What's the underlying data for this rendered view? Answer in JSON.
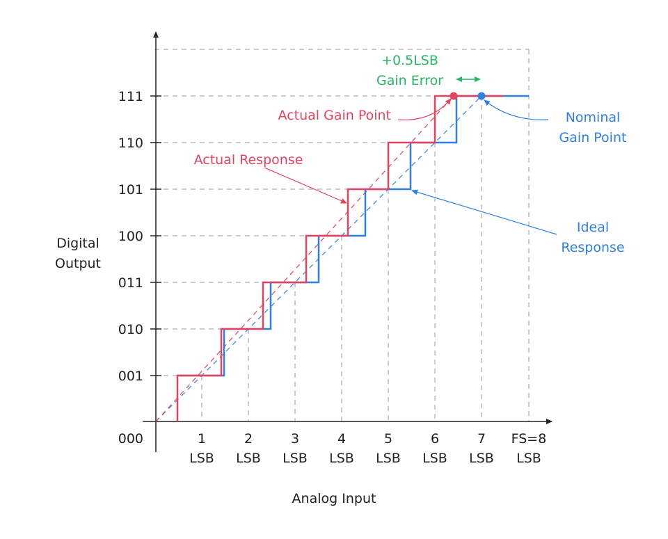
{
  "axes": {
    "y_label_lines": [
      "Digital",
      "Output"
    ],
    "x_label": "Analog Input",
    "y_codes": [
      "000",
      "001",
      "010",
      "011",
      "100",
      "101",
      "110",
      "111"
    ],
    "x_ticks": [
      {
        "value": "1",
        "unit": "LSB"
      },
      {
        "value": "2",
        "unit": "LSB"
      },
      {
        "value": "3",
        "unit": "LSB"
      },
      {
        "value": "4",
        "unit": "LSB"
      },
      {
        "value": "5",
        "unit": "LSB"
      },
      {
        "value": "6",
        "unit": "LSB"
      },
      {
        "value": "7",
        "unit": "LSB"
      },
      {
        "value": "FS=8",
        "unit": "LSB"
      }
    ]
  },
  "annotations": {
    "gain_error_lines": [
      "+0.5LSB",
      "Gain Error"
    ],
    "actual_gain_point": "Actual Gain Point",
    "actual_response": "Actual Response",
    "nominal_gain_point_lines": [
      "Nominal",
      "Gain Point"
    ],
    "ideal_response_lines": [
      "Ideal",
      "Response"
    ]
  },
  "colors": {
    "actual": "#e2435e",
    "ideal": "#2f80e0",
    "gain_error": "#2bb566",
    "axis": "#222222",
    "grid": "#9a9a9a"
  }
}
